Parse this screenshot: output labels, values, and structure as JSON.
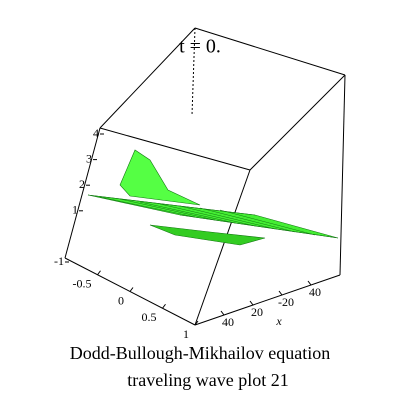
{
  "chart_data": {
    "type": "surface",
    "title": "t = 0.",
    "caption": [
      "Dodd-Bullough-Mikhailov equation",
      "traveling wave plot 21"
    ],
    "xlabel": "x",
    "zticks": [
      -1,
      1,
      2,
      3,
      4
    ],
    "zlim": [
      -1,
      4
    ],
    "yticks": [
      -0.5,
      0,
      0.5,
      1
    ],
    "ylim": [
      -1,
      1
    ],
    "xticks": [
      40,
      20,
      -20,
      40
    ],
    "color": "#44ee33"
  }
}
